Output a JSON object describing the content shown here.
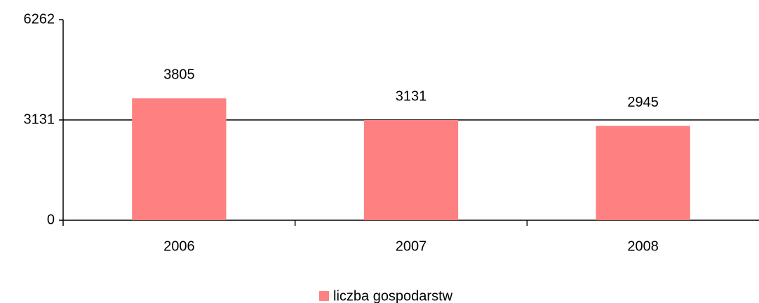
{
  "chart_data": {
    "type": "bar",
    "categories": [
      "2006",
      "2007",
      "2008"
    ],
    "series": [
      {
        "name": "liczba gospodarstw",
        "color": "#ff8080",
        "values": [
          3805,
          3131,
          2945
        ]
      }
    ],
    "ylim": [
      0,
      6262
    ],
    "yticks": [
      0,
      3131,
      6262
    ],
    "grid": true
  }
}
